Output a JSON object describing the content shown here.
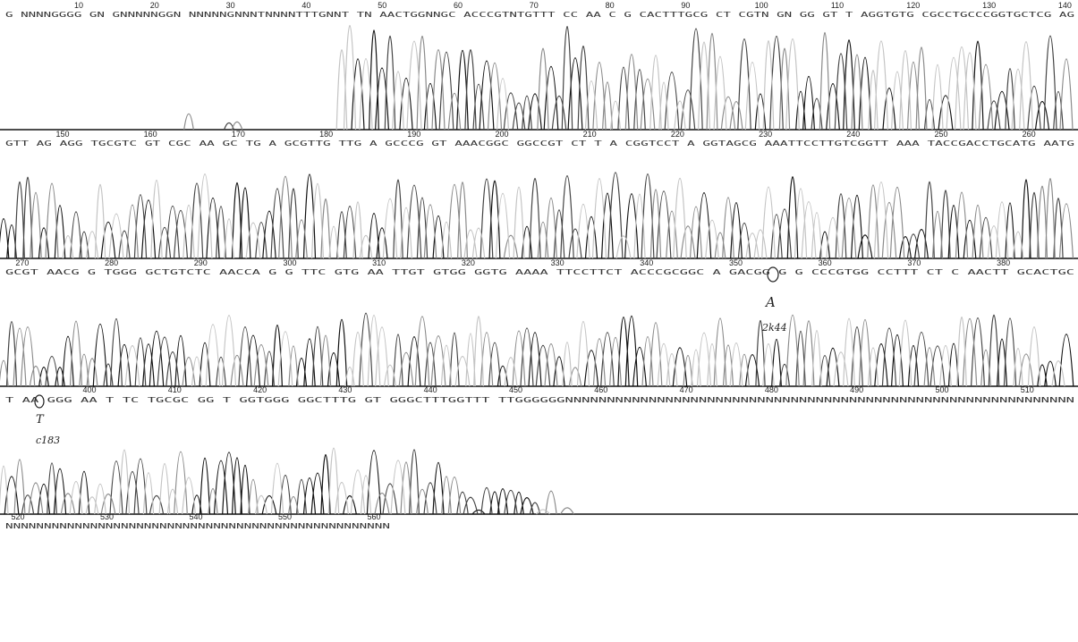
{
  "rows": [
    {
      "positions": [
        10,
        20,
        30,
        40,
        50,
        60,
        70,
        80,
        90,
        100,
        110,
        120,
        130,
        140
      ],
      "sequence": "G NNNNGGGG GN GNNNNNGGN NNNNNGNNNTNNNNTTTGNNT TN AACTGGNNGC ACCCGTNTGTTT CC AA C G CACTTTGCG CT CGTN GN GG GT T AGGTGTG CGCCTGCCCGGTGCTCG AG"
    },
    {
      "positions": [
        150,
        160,
        170,
        180,
        190,
        200,
        210,
        220,
        230,
        240,
        250,
        260
      ],
      "sequence": "GTT AG AGG TGCGTC GT CGC AA GC TG A GCGTTG TTG A GCCCG GT AAACGGC GGCCGT CT T A CGGTCCT A GGTAGCG AAATTCCTTGTCGGTT AAA TACCGACCTGCATG AATG"
    },
    {
      "positions": [
        270,
        280,
        290,
        300,
        310,
        320,
        330,
        340,
        350,
        360,
        370,
        380
      ],
      "sequence": "GCGT AACG G TGGG GCTGTCTC AACCA G G TTC GTG AA TTGT GTGG GGTG AAAA TTCCTTCT ACCCGCGGC A GACGG G G CCCGTGG CCTTT CT C AACTT GCACTGC"
    },
    {
      "positions": [
        400,
        410,
        420,
        430,
        440,
        450,
        460,
        470,
        480,
        490,
        500,
        510
      ],
      "sequence": "T AA GGG AA T TC TGCGC GG T GGTGGG GGCTTTG GT GGGCTTTGGTTT TTGGGGGGNNNNNNNNNNNNNNNNNNNNNNNNNNNNNNNNNNNNNNNNNNNNNNNNNNNNNNNNNNNNN"
    },
    {
      "positions": [
        520,
        530,
        540,
        550,
        560
      ],
      "sequence": "NNNNNNNNNNNNNNNNNNNNNNNNNNNNNNNNNNNNNNNNNNNNNNNNNN"
    }
  ],
  "annotations": [
    {
      "text": "A"
    },
    {
      "text": "2k44"
    },
    {
      "text": "T"
    },
    {
      "text": "c183"
    }
  ]
}
